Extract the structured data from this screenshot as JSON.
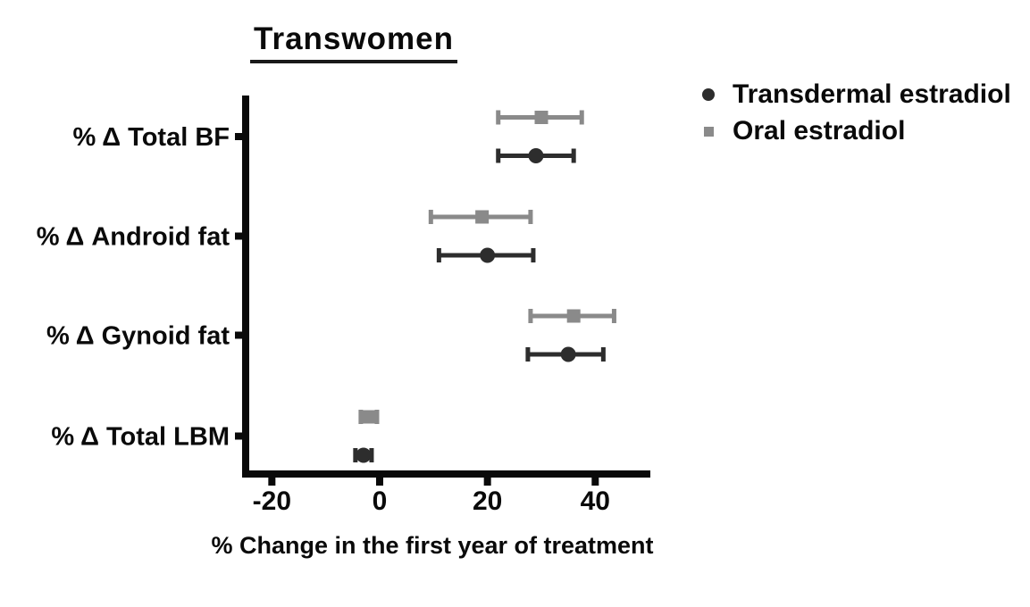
{
  "chart_data": {
    "type": "scatter",
    "subtype": "horizontal error-bar (forest) plot",
    "title": "Transwomen",
    "xlabel": "% Change in the first year of treatment",
    "ylabel": "",
    "categories": [
      "% Δ Total BF",
      "% Δ Android fat",
      "% Δ Gynoid fat",
      "% Δ Total LBM"
    ],
    "xticks": [
      "-20",
      "0",
      "20",
      "40"
    ],
    "xtick_values": [
      -20,
      0,
      20,
      40
    ],
    "xlim": [
      -25.5,
      50
    ],
    "grid": false,
    "legend_position": "outside upper right",
    "axis_color": "#0a0a0a",
    "legend": [
      {
        "label": "Transdermal estradiol",
        "marker": "circle",
        "color": "#2d2d2d"
      },
      {
        "label": "Oral estradiol",
        "marker": "square",
        "color": "#8a8a8a"
      }
    ],
    "series": [
      {
        "name": "Oral estradiol",
        "marker": "square",
        "color": "#8a8a8a",
        "row_position": "upper",
        "values": [
          30,
          19,
          36,
          -2
        ],
        "ci_low": [
          22,
          9.5,
          28,
          -3.5
        ],
        "ci_high": [
          37.5,
          28,
          43.5,
          -0.5
        ]
      },
      {
        "name": "Transdermal estradiol",
        "marker": "circle",
        "color": "#2d2d2d",
        "row_position": "lower",
        "values": [
          29,
          20,
          35,
          -3
        ],
        "ci_low": [
          22,
          11,
          27.5,
          -4.5
        ],
        "ci_high": [
          36,
          28.5,
          41.5,
          -1.5
        ]
      }
    ]
  }
}
